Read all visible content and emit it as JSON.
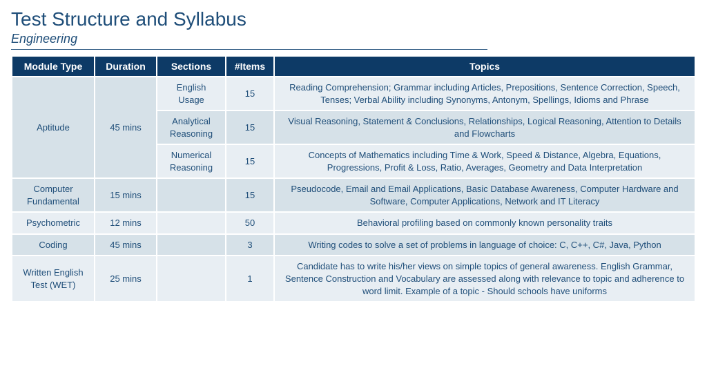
{
  "header": {
    "title": "Test Structure and Syllabus",
    "subtitle": "Engineering"
  },
  "columns": {
    "module": "Module Type",
    "duration": "Duration",
    "sections": "Sections",
    "items": "#Items",
    "topics": "Topics"
  },
  "rows": {
    "aptitude": {
      "module": "Aptitude",
      "duration": "45 mins",
      "sub": [
        {
          "section": "English Usage",
          "items": "15",
          "topics": "Reading Comprehension; Grammar including Articles, Prepositions, Sentence Correction, Speech, Tenses; Verbal Ability including Synonyms, Antonym, Spellings, Idioms and Phrase"
        },
        {
          "section": "Analytical Reasoning",
          "items": "15",
          "topics": "Visual Reasoning, Statement & Conclusions, Relationships, Logical Reasoning, Attention to Details and Flowcharts"
        },
        {
          "section": "Numerical Reasoning",
          "items": "15",
          "topics": "Concepts of Mathematics including Time & Work, Speed & Distance, Algebra, Equations, Progressions, Profit & Loss, Ratio, Averages, Geometry and Data Interpretation"
        }
      ]
    },
    "compfund": {
      "module": "Computer Fundamental",
      "duration": "15 mins",
      "section": "",
      "items": "15",
      "topics": "Pseudocode, Email and Email Applications, Basic Database Awareness, Computer Hardware and Software, Computer Applications, Network and IT Literacy"
    },
    "psych": {
      "module": "Psychometric",
      "duration": "12 mins",
      "section": "",
      "items": "50",
      "topics": "Behavioral profiling based on commonly known personality traits"
    },
    "coding": {
      "module": "Coding",
      "duration": "45 mins",
      "section": "",
      "items": "3",
      "topics": "Writing codes to solve a set of problems in language of choice: C, C++, C#, Java, Python"
    },
    "wet": {
      "module": "Written English Test (WET)",
      "duration": "25 mins",
      "section": "",
      "items": "1",
      "topics": "Candidate has to write his/her views on simple topics of general awareness. English Grammar, Sentence Construction and Vocabulary are assessed along with relevance to topic and adherence to word limit. Example of a topic - Should schools have uniforms"
    }
  },
  "style": {
    "header_bg": "#0d3a66",
    "header_fg": "#ffffff",
    "cell_bg": "#d6e1e8",
    "cell_bg_alt": "#e8eef3",
    "cell_fg": "#1f4e79",
    "border": "#ffffff",
    "title_color": "#1f4e79"
  }
}
